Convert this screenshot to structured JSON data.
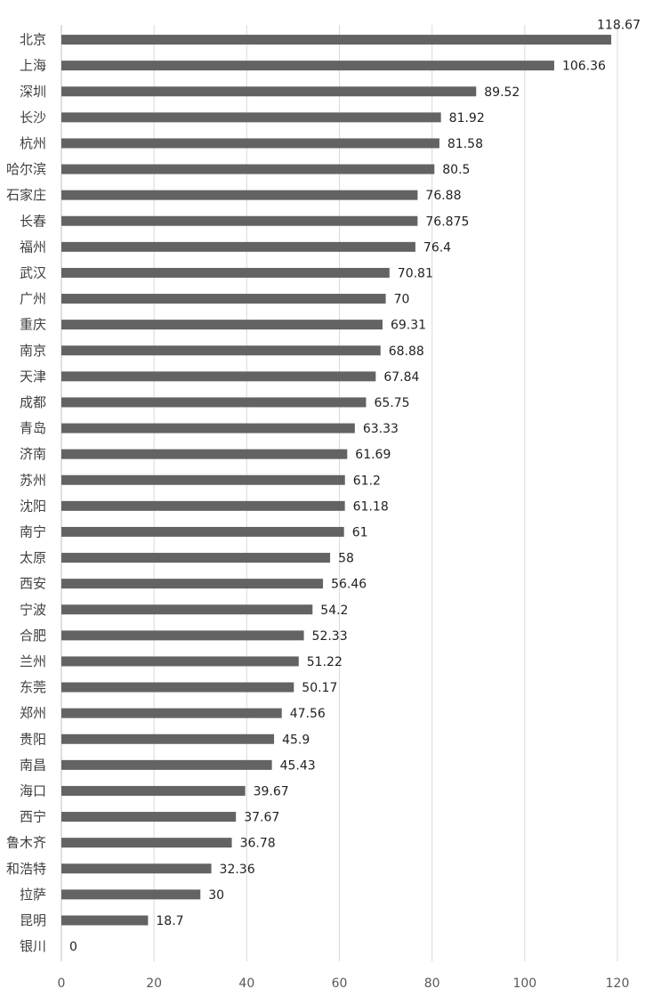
{
  "chart_data": {
    "type": "bar",
    "orientation": "horizontal",
    "title": "",
    "xlabel": "",
    "ylabel": "",
    "xlim": [
      0,
      120
    ],
    "x_ticks": [
      0,
      20,
      40,
      60,
      80,
      100,
      120
    ],
    "grid": "vertical",
    "legend": "none",
    "bar_color": "#636363",
    "categories": [
      "北京",
      "上海",
      "深圳",
      "长沙",
      "杭州",
      "哈尔滨",
      "石家庄",
      "长春",
      "福州",
      "武汉",
      "广州",
      "重庆",
      "南京",
      "天津",
      "成都",
      "青岛",
      "济南",
      "苏州",
      "沈阳",
      "南宁",
      "太原",
      "西安",
      "宁波",
      "合肥",
      "兰州",
      "东莞",
      "郑州",
      "贵阳",
      "南昌",
      "海口",
      "西宁",
      "鲁木齐",
      "和浩特",
      "拉萨",
      "昆明",
      "银川"
    ],
    "values": [
      118.67,
      106.36,
      89.52,
      81.92,
      81.58,
      80.5,
      76.88,
      76.875,
      76.4,
      70.81,
      70,
      69.31,
      68.88,
      67.84,
      65.75,
      63.33,
      61.69,
      61.2,
      61.18,
      61,
      58,
      56.46,
      54.2,
      52.33,
      51.22,
      50.17,
      47.56,
      45.9,
      45.43,
      39.67,
      37.67,
      36.78,
      32.36,
      30,
      18.7,
      0
    ]
  }
}
